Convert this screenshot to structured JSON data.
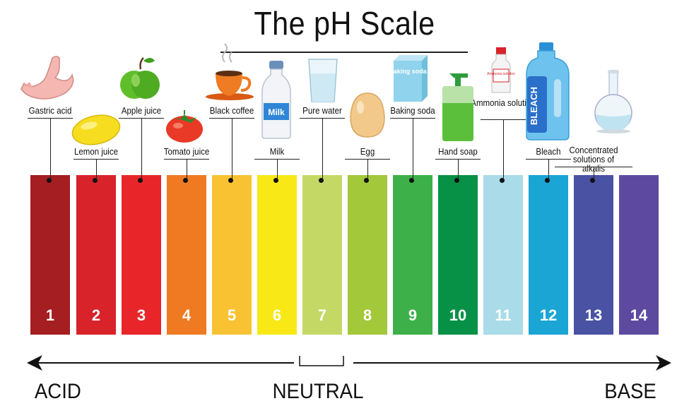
{
  "title": "The pH Scale",
  "scale": [
    {
      "ph": "1",
      "label": "Gastric acid",
      "color": "#a41e22",
      "icon": "stomach-icon"
    },
    {
      "ph": "2",
      "label": "Lemon juice",
      "color": "#d8232a",
      "icon": "lemon-icon"
    },
    {
      "ph": "3",
      "label": "Apple juice",
      "color": "#e8262a",
      "icon": "apple-icon"
    },
    {
      "ph": "4",
      "label": "Tomato juice",
      "color": "#f07a22",
      "icon": "tomato-icon"
    },
    {
      "ph": "5",
      "label": "Black coffee",
      "color": "#f9c233",
      "icon": "coffee-cup-icon"
    },
    {
      "ph": "6",
      "label": "Milk",
      "color": "#f8e816",
      "icon": "milk-bottle-icon"
    },
    {
      "ph": "7",
      "label": "Pure water",
      "color": "#c4d865",
      "icon": "water-glass-icon"
    },
    {
      "ph": "8",
      "label": "Egg",
      "color": "#a3c83a",
      "icon": "egg-icon"
    },
    {
      "ph": "9",
      "label": "Baking soda",
      "color": "#3db04a",
      "icon": "baking-soda-box-icon"
    },
    {
      "ph": "10",
      "label": "Hand soap",
      "color": "#079146",
      "icon": "soap-dispenser-icon"
    },
    {
      "ph": "11",
      "label": "Ammonia solution",
      "color": "#a9dbe9",
      "icon": "ammonia-bottle-icon"
    },
    {
      "ph": "12",
      "label": "Bleach",
      "color": "#1aa5d5",
      "icon": "bleach-bottle-icon"
    },
    {
      "ph": "13",
      "label": "Concentrated solutions of alkalis",
      "color": "#4a52a3",
      "icon": "flask-icon"
    },
    {
      "ph": "14",
      "label": "",
      "color": "#5d4aa0",
      "icon": ""
    }
  ],
  "axis": {
    "acid": "ACID",
    "neutral": "NEUTRAL",
    "base": "BASE"
  },
  "icon_texts": {
    "milk": "Milk",
    "baking_soda": "Baking soda",
    "ammonia": "Ammonia solution",
    "bleach": "BLEACH"
  }
}
